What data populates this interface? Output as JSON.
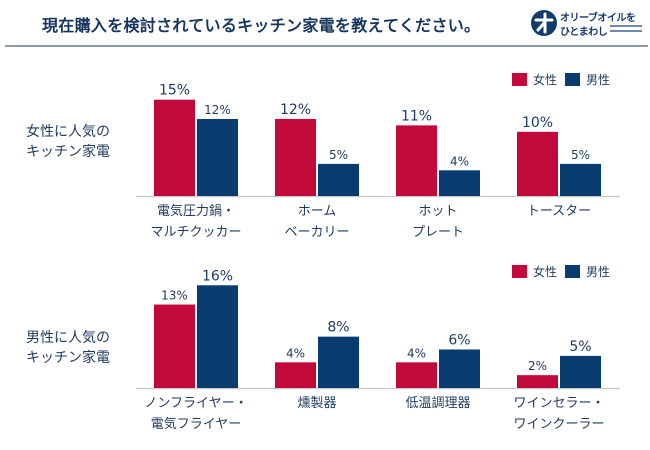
{
  "title": "現在購入を検討されているキッチン家電を教えてください。",
  "logo": {
    "line1": "オリーブオイルを",
    "line2": "ひとまわし"
  },
  "colors": {
    "female": "#c20a3a",
    "male": "#083c6e",
    "text": "#1e3a5f",
    "axis": "#c8c8c8"
  },
  "legend": {
    "female": "女性",
    "male": "男性"
  },
  "chart_data": [
    {
      "type": "bar",
      "title": "女性に人気の\nキッチン家電",
      "categories": [
        "電気圧力鍋・\nマルチクッカー",
        "ホーム\nベーカリー",
        "ホット\nプレート",
        "トースター"
      ],
      "series": [
        {
          "name": "女性",
          "values": [
            15,
            12,
            11,
            10
          ],
          "labels": [
            "15%",
            "12%",
            "11%",
            "10%"
          ]
        },
        {
          "name": "男性",
          "values": [
            12,
            5,
            4,
            5
          ],
          "labels": [
            "12%",
            "5%",
            "4%",
            "5%"
          ]
        }
      ],
      "unit": "%",
      "ylim": [
        0,
        16
      ],
      "legend_position": "top-right",
      "grid": false
    },
    {
      "type": "bar",
      "title": "男性に人気の\nキッチン家電",
      "categories": [
        "ノンフライヤー・\n電気フライヤー",
        "燻製器",
        "低温調理器",
        "ワインセラー・\nワインクーラー"
      ],
      "series": [
        {
          "name": "女性",
          "values": [
            13,
            4,
            4,
            2
          ],
          "labels": [
            "13%",
            "4%",
            "4%",
            "2%"
          ]
        },
        {
          "name": "男性",
          "values": [
            16,
            8,
            6,
            5
          ],
          "labels": [
            "16%",
            "8%",
            "6%",
            "5%"
          ]
        }
      ],
      "unit": "%",
      "ylim": [
        0,
        16
      ],
      "legend_position": "top-right",
      "grid": false
    }
  ]
}
